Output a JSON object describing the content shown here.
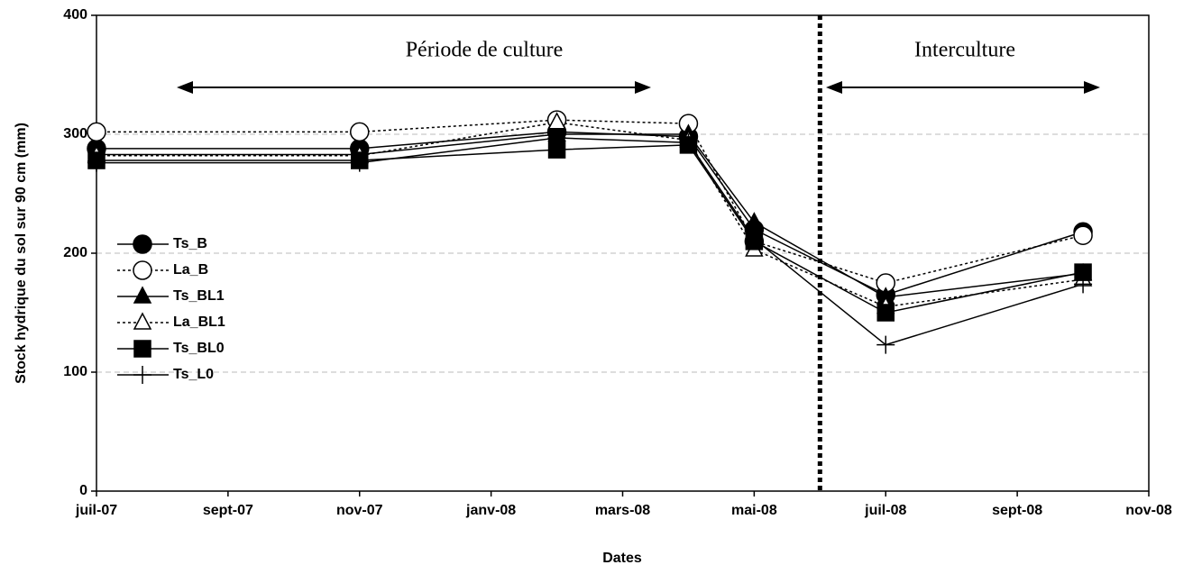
{
  "chart_data": {
    "type": "line",
    "x_label": "Dates",
    "y_label": "Stock hydrique du sol sur 90 cm (mm)",
    "annotations": [
      "Période de culture",
      "Interculture"
    ],
    "vline_x": "2008-06",
    "x": [
      "2007-07",
      "2007-11",
      "2008-02",
      "2008-04",
      "2008-05",
      "2008-07",
      "2008-10"
    ],
    "series": [
      {
        "name": "Ts_B",
        "color": "#000000",
        "marker": "circle",
        "filled": true,
        "dash": "solid",
        "values": [
          288,
          288,
          302,
          298,
          220,
          165,
          218
        ]
      },
      {
        "name": "La_B",
        "color": "#000000",
        "marker": "circle",
        "filled": false,
        "dash": "dotted",
        "values": [
          302,
          302,
          312,
          309,
          210,
          175,
          215
        ]
      },
      {
        "name": "Ts_BL1",
        "color": "#000000",
        "marker": "triangle",
        "filled": true,
        "dash": "solid",
        "values": [
          283,
          283,
          300,
          300,
          226,
          163,
          183
        ]
      },
      {
        "name": "La_BL1",
        "color": "#000000",
        "marker": "triangle",
        "filled": false,
        "dash": "dotted",
        "values": [
          282,
          282,
          310,
          295,
          203,
          155,
          178
        ]
      },
      {
        "name": "Ts_BL0",
        "color": "#000000",
        "marker": "square",
        "filled": true,
        "dash": "solid",
        "values": [
          278,
          278,
          287,
          291,
          210,
          150,
          184
        ]
      },
      {
        "name": "Ts_L0",
        "color": "#000000",
        "marker": "plus",
        "filled": true,
        "dash": "solid",
        "values": [
          276,
          276,
          297,
          293,
          212,
          123,
          174
        ]
      }
    ],
    "xlim": [
      "2007-07",
      "2008-11"
    ],
    "xticks": [
      {
        "value": "2007-07",
        "label": "juil-07"
      },
      {
        "value": "2007-09",
        "label": "sept-07"
      },
      {
        "value": "2007-11",
        "label": "nov-07"
      },
      {
        "value": "2008-01",
        "label": "janv-08"
      },
      {
        "value": "2008-03",
        "label": "mars-08"
      },
      {
        "value": "2008-05",
        "label": "mai-08"
      },
      {
        "value": "2008-07",
        "label": "juil-08"
      },
      {
        "value": "2008-09",
        "label": "sept-08"
      },
      {
        "value": "2008-11",
        "label": "nov-08"
      }
    ],
    "ylim": [
      0,
      400
    ],
    "yticks": [
      0,
      100,
      200,
      300,
      400
    ],
    "grid": true
  }
}
